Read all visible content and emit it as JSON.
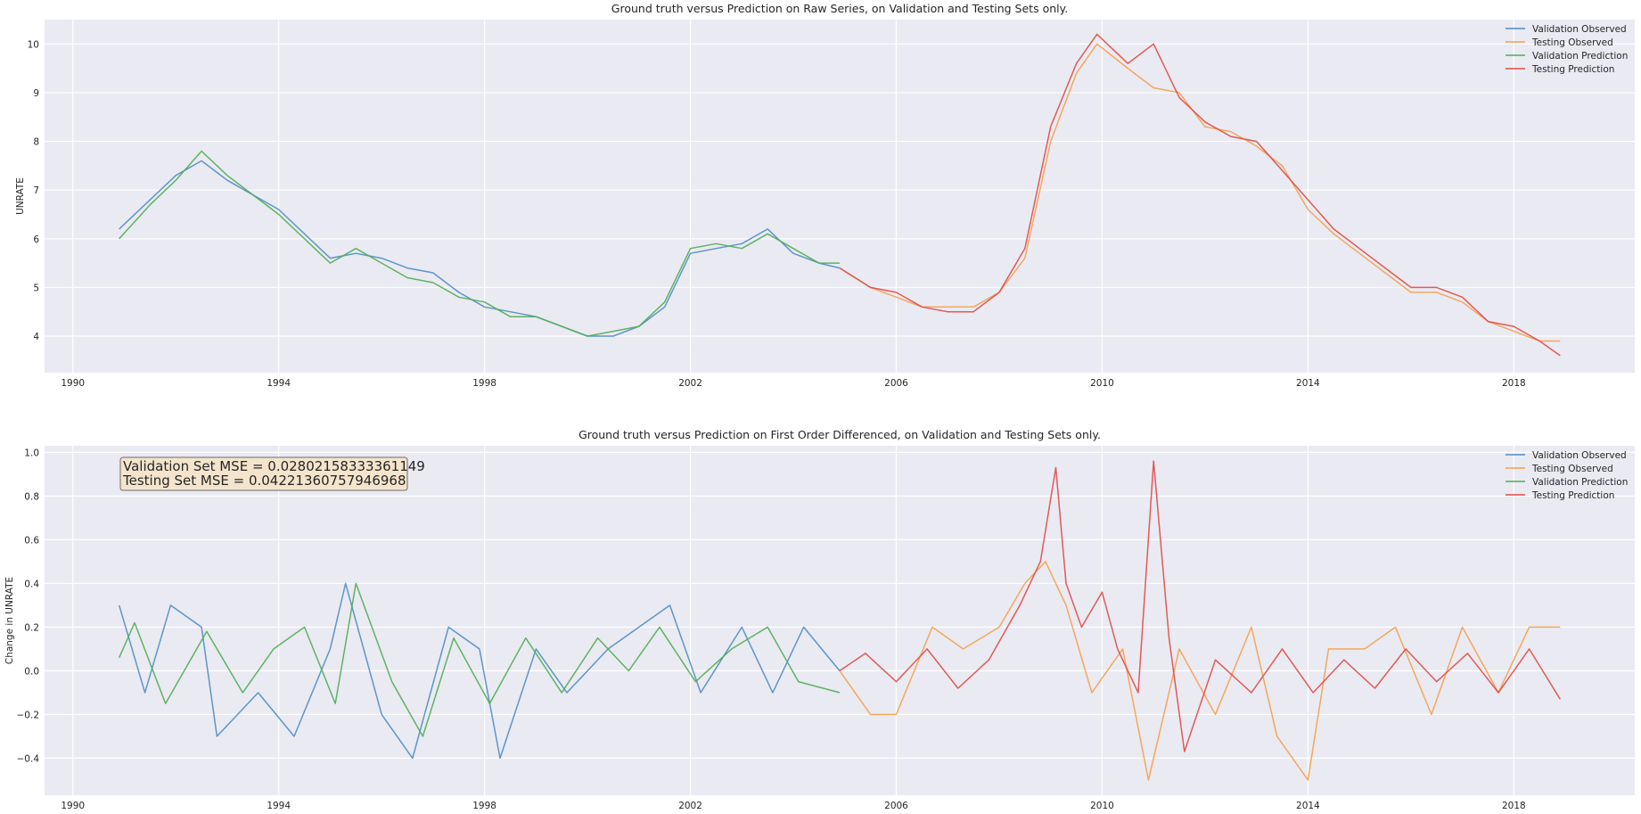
{
  "colors": {
    "validation_observed": "#4c8dc4",
    "testing_observed": "#f5a04d",
    "validation_prediction": "#4fad54",
    "testing_prediction": "#e04a46",
    "axes_background": "#eaeaf2",
    "grid": "#ffffff",
    "annotation_fill": "#f4e4cc"
  },
  "chart_data": [
    {
      "type": "line",
      "title": "Ground truth versus Prediction on Raw Series, on Validation and Testing Sets only.",
      "xlabel": "",
      "ylabel": "UNRATE",
      "x_ticks": [
        "1990",
        "1994",
        "1998",
        "2002",
        "2006",
        "2010",
        "2014",
        "2018"
      ],
      "y_ticks": [
        "4",
        "5",
        "6",
        "7",
        "8",
        "9",
        "10"
      ],
      "xlim": [
        1989.45,
        2020.35
      ],
      "ylim": [
        3.25,
        10.5
      ],
      "grid": true,
      "legend_position": "top-right",
      "legend": [
        "Validation Observed",
        "Testing Observed",
        "Validation Prediction",
        "Testing Prediction"
      ],
      "series": [
        {
          "name": "Validation Observed",
          "x": [
            1990.9,
            1991.5,
            1992.0,
            1992.5,
            1993.0,
            1993.5,
            1994.0,
            1994.5,
            1995.0,
            1995.5,
            1996.0,
            1996.5,
            1997.0,
            1997.5,
            1998.0,
            1998.5,
            1999.0,
            1999.5,
            2000.0,
            2000.5,
            2001.0,
            2001.5,
            2002.0,
            2002.5,
            2003.0,
            2003.5,
            2004.0,
            2004.5,
            2004.9
          ],
          "y": [
            6.2,
            6.8,
            7.3,
            7.6,
            7.2,
            6.9,
            6.6,
            6.1,
            5.6,
            5.7,
            5.6,
            5.4,
            5.3,
            4.9,
            4.6,
            4.5,
            4.4,
            4.2,
            4.0,
            4.0,
            4.2,
            4.6,
            5.7,
            5.8,
            5.9,
            6.2,
            5.7,
            5.5,
            5.4
          ]
        },
        {
          "name": "Testing Observed",
          "x": [
            2004.9,
            2005.5,
            2006.0,
            2006.5,
            2007.0,
            2007.5,
            2008.0,
            2008.5,
            2009.0,
            2009.5,
            2009.9,
            2010.5,
            2011.0,
            2011.5,
            2012.0,
            2012.5,
            2013.0,
            2013.5,
            2014.0,
            2014.5,
            2015.0,
            2015.5,
            2016.0,
            2016.5,
            2017.0,
            2017.5,
            2018.0,
            2018.5,
            2018.9
          ],
          "y": [
            5.4,
            5.0,
            4.8,
            4.6,
            4.6,
            4.6,
            4.9,
            5.6,
            8.0,
            9.4,
            10.0,
            9.5,
            9.1,
            9.0,
            8.3,
            8.2,
            7.9,
            7.5,
            6.6,
            6.1,
            5.7,
            5.3,
            4.9,
            4.9,
            4.7,
            4.3,
            4.1,
            3.9,
            3.9
          ]
        },
        {
          "name": "Validation Prediction",
          "x": [
            1990.9,
            1991.5,
            1992.0,
            1992.5,
            1993.0,
            1993.5,
            1994.0,
            1994.5,
            1995.0,
            1995.5,
            1996.0,
            1996.5,
            1997.0,
            1997.5,
            1998.0,
            1998.5,
            1999.0,
            1999.5,
            2000.0,
            2000.5,
            2001.0,
            2001.5,
            2002.0,
            2002.5,
            2003.0,
            2003.5,
            2004.0,
            2004.5,
            2004.9
          ],
          "y": [
            6.0,
            6.7,
            7.2,
            7.8,
            7.3,
            6.9,
            6.5,
            6.0,
            5.5,
            5.8,
            5.5,
            5.2,
            5.1,
            4.8,
            4.7,
            4.4,
            4.4,
            4.2,
            4.0,
            4.1,
            4.2,
            4.7,
            5.8,
            5.9,
            5.8,
            6.1,
            5.8,
            5.5,
            5.5
          ]
        },
        {
          "name": "Testing Prediction",
          "x": [
            2004.9,
            2005.5,
            2006.0,
            2006.5,
            2007.0,
            2007.5,
            2008.0,
            2008.5,
            2009.0,
            2009.5,
            2009.9,
            2010.5,
            2011.0,
            2011.5,
            2012.0,
            2012.5,
            2013.0,
            2013.5,
            2014.0,
            2014.5,
            2015.0,
            2015.5,
            2016.0,
            2016.5,
            2017.0,
            2017.5,
            2018.0,
            2018.5,
            2018.9
          ],
          "y": [
            5.4,
            5.0,
            4.9,
            4.6,
            4.5,
            4.5,
            4.9,
            5.8,
            8.3,
            9.6,
            10.2,
            9.6,
            10.0,
            8.9,
            8.4,
            8.1,
            8.0,
            7.4,
            6.8,
            6.2,
            5.8,
            5.4,
            5.0,
            5.0,
            4.8,
            4.3,
            4.2,
            3.9,
            3.6
          ]
        }
      ]
    },
    {
      "type": "line",
      "title": "Ground truth versus Prediction on First Order Differenced, on Validation and Testing Sets only.",
      "xlabel": "",
      "ylabel": "Change in UNRATE",
      "x_ticks": [
        "1990",
        "1994",
        "1998",
        "2002",
        "2006",
        "2010",
        "2014",
        "2018"
      ],
      "y_ticks": [
        "−0.4",
        "−0.2",
        "0.0",
        "0.2",
        "0.4",
        "0.6",
        "0.8",
        "1.0"
      ],
      "xlim": [
        1989.45,
        2020.35
      ],
      "ylim": [
        -0.57,
        1.03
      ],
      "grid": true,
      "legend_position": "top-right",
      "legend": [
        "Validation Observed",
        "Testing Observed",
        "Validation Prediction",
        "Testing Prediction"
      ],
      "annotations": [
        "Validation Set MSE = 0.02802158333361149",
        "Testing Set MSE = 0.04221360757946968"
      ],
      "series": [
        {
          "name": "Validation Observed",
          "x": [
            1990.9,
            1991.4,
            1991.9,
            1992.5,
            1992.8,
            1993.6,
            1994.3,
            1995.0,
            1995.3,
            1996.0,
            1996.6,
            1997.3,
            1997.9,
            1998.3,
            1999.0,
            1999.6,
            2000.4,
            2001.0,
            2001.6,
            2002.2,
            2003.0,
            2003.6,
            2004.2,
            2004.9
          ],
          "y": [
            0.3,
            -0.1,
            0.3,
            0.2,
            -0.3,
            -0.1,
            -0.3,
            0.1,
            0.4,
            -0.2,
            -0.4,
            0.2,
            0.1,
            -0.4,
            0.1,
            -0.1,
            0.1,
            0.2,
            0.3,
            -0.1,
            0.2,
            -0.1,
            0.2,
            0.0
          ]
        },
        {
          "name": "Testing Observed",
          "x": [
            2004.9,
            2005.5,
            2006.0,
            2006.7,
            2007.3,
            2008.0,
            2008.5,
            2008.9,
            2009.3,
            2009.8,
            2010.4,
            2010.9,
            2011.5,
            2012.2,
            2012.9,
            2013.4,
            2014.0,
            2014.4,
            2015.1,
            2015.7,
            2016.4,
            2017.0,
            2017.7,
            2018.3,
            2018.9
          ],
          "y": [
            0.0,
            -0.2,
            -0.2,
            0.2,
            0.1,
            0.2,
            0.4,
            0.5,
            0.3,
            -0.1,
            0.1,
            -0.5,
            0.1,
            -0.2,
            0.2,
            -0.3,
            -0.5,
            0.1,
            0.1,
            0.2,
            -0.2,
            0.2,
            -0.1,
            0.2,
            0.2
          ]
        },
        {
          "name": "Validation Prediction",
          "x": [
            1990.9,
            1991.2,
            1991.8,
            1992.6,
            1993.3,
            1993.9,
            1994.5,
            1995.1,
            1995.5,
            1996.2,
            1996.8,
            1997.4,
            1998.1,
            1998.8,
            1999.5,
            2000.2,
            2000.8,
            2001.4,
            2002.1,
            2002.8,
            2003.5,
            2004.1,
            2004.9
          ],
          "y": [
            0.06,
            0.22,
            -0.15,
            0.18,
            -0.1,
            0.1,
            0.2,
            -0.15,
            0.4,
            -0.05,
            -0.3,
            0.15,
            -0.15,
            0.15,
            -0.1,
            0.15,
            0.0,
            0.2,
            -0.05,
            0.1,
            0.2,
            -0.05,
            -0.1
          ]
        },
        {
          "name": "Testing Prediction",
          "x": [
            2004.9,
            2005.4,
            2006.0,
            2006.6,
            2007.2,
            2007.8,
            2008.4,
            2008.8,
            2009.1,
            2009.3,
            2009.6,
            2010.0,
            2010.3,
            2010.7,
            2011.0,
            2011.3,
            2011.6,
            2012.2,
            2012.9,
            2013.5,
            2014.1,
            2014.7,
            2015.3,
            2015.9,
            2016.5,
            2017.1,
            2017.7,
            2018.3,
            2018.9
          ],
          "y": [
            0.0,
            0.08,
            -0.05,
            0.1,
            -0.08,
            0.05,
            0.3,
            0.5,
            0.93,
            0.4,
            0.2,
            0.36,
            0.1,
            -0.1,
            0.96,
            0.15,
            -0.37,
            0.05,
            -0.1,
            0.1,
            -0.1,
            0.05,
            -0.08,
            0.1,
            -0.05,
            0.08,
            -0.1,
            0.1,
            -0.13
          ]
        }
      ]
    }
  ]
}
